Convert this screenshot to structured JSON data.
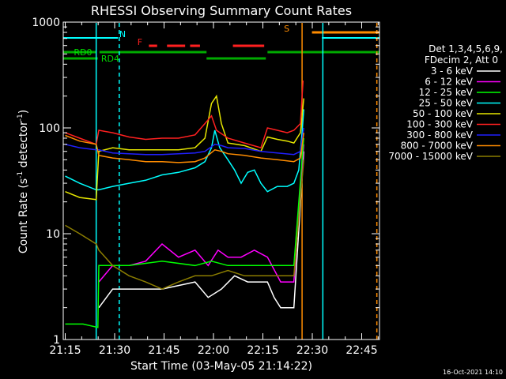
{
  "chart_data": {
    "type": "line",
    "title": "RHESSI Observing Summary Count Rates",
    "xlabel": "Start Time (03-May-05 21:14:22)",
    "ylabel_main": "Count Rate (s",
    "ylabel_sup1": "-1",
    "ylabel_mid": " detector",
    "ylabel_sup2": "-1",
    "ylabel_end": ")",
    "footer": "16-Oct-2021 14:10",
    "x_range_minutes": [
      0,
      96
    ],
    "y_log": true,
    "ylim": [
      1,
      1000
    ],
    "x_ticks": [
      {
        "label": "21:15",
        "t": 0.6
      },
      {
        "label": "21:30",
        "t": 15.6
      },
      {
        "label": "21:45",
        "t": 30.6
      },
      {
        "label": "22:00",
        "t": 45.6
      },
      {
        "label": "22:15",
        "t": 60.6
      },
      {
        "label": "22:30",
        "t": 75.6
      },
      {
        "label": "22:45",
        "t": 90.6
      }
    ],
    "y_ticks": [
      {
        "label": "1",
        "v": 1
      },
      {
        "label": "10",
        "v": 10
      },
      {
        "label": "100",
        "v": 100
      },
      {
        "label": "1000",
        "v": 1000
      }
    ],
    "legend": {
      "header1": "Det 1,3,4,5,6,9,",
      "header2": "FDecim 2, Att 0",
      "entries": [
        {
          "label": "3 - 6 keV",
          "color": "#ffffff"
        },
        {
          "label": "6 - 12 keV",
          "color": "#ff00ff"
        },
        {
          "label": "12 - 25 keV",
          "color": "#00ff00"
        },
        {
          "label": "25 - 50 keV",
          "color": "#00ffff"
        },
        {
          "label": "50 - 100 keV",
          "color": "#e6e600"
        },
        {
          "label": "100 - 300 keV",
          "color": "#ff2020"
        },
        {
          "label": "300 - 800 keV",
          "color": "#2020ff"
        },
        {
          "label": "800 - 7000 keV",
          "color": "#ff8c00"
        },
        {
          "label": "7000 - 15000 keV",
          "color": "#8b7d00"
        }
      ]
    },
    "flags": {
      "N_label": "N",
      "F_label": "F",
      "S_label": "S",
      "RD0_label": "RD0",
      "RD4_label": "RD4",
      "N_segments": [
        [
          0,
          16.6
        ],
        [
          78.5,
          96
        ]
      ],
      "F_segments": [
        [
          26,
          28.5
        ],
        [
          31.5,
          37
        ],
        [
          38.5,
          41.5
        ],
        [
          51.5,
          61
        ]
      ],
      "S_segments": [
        [
          75.5,
          96
        ]
      ],
      "RD0_segments": [
        [
          0,
          10
        ],
        [
          11,
          43.5
        ],
        [
          62,
          96
        ]
      ],
      "RD4_segments": [
        [
          0,
          10.5
        ],
        [
          43.5,
          61.5
        ]
      ]
    },
    "vlines": [
      {
        "t": 10,
        "color": "#00ffff",
        "dash": false
      },
      {
        "t": 17,
        "color": "#00ffff",
        "dash": true
      },
      {
        "t": 72.5,
        "color": "#ff8c00",
        "dash": false
      },
      {
        "t": 78.8,
        "color": "#00ffff",
        "dash": false
      },
      {
        "t": 95.2,
        "color": "#ff8c00",
        "dash": true
      }
    ],
    "series": [
      {
        "name": "3 - 6 keV",
        "color": "#ffffff",
        "points": [
          [
            10.8,
            2
          ],
          [
            15,
            3
          ],
          [
            20,
            3
          ],
          [
            30,
            3
          ],
          [
            40,
            3.5
          ],
          [
            44,
            2.5
          ],
          [
            48,
            3
          ],
          [
            52,
            4
          ],
          [
            56,
            3.5
          ],
          [
            62,
            3.5
          ],
          [
            64,
            2.5
          ],
          [
            66,
            2
          ],
          [
            70,
            2
          ],
          [
            73,
            60
          ]
        ]
      },
      {
        "name": "6 - 12 keV",
        "color": "#ff00ff",
        "points": [
          [
            10.8,
            3.5
          ],
          [
            15,
            5
          ],
          [
            20,
            5
          ],
          [
            25,
            5.5
          ],
          [
            30,
            8
          ],
          [
            35,
            6
          ],
          [
            40,
            7
          ],
          [
            44,
            5
          ],
          [
            47,
            7
          ],
          [
            50,
            6
          ],
          [
            54,
            6
          ],
          [
            58,
            7
          ],
          [
            62,
            6
          ],
          [
            66,
            3.5
          ],
          [
            70,
            3.5
          ],
          [
            73,
            70
          ]
        ]
      },
      {
        "name": "12 - 25 keV",
        "color": "#00ff00",
        "points": [
          [
            0.6,
            1.4
          ],
          [
            6,
            1.4
          ],
          [
            10.5,
            1.3
          ],
          [
            10.8,
            5
          ],
          [
            15,
            5
          ],
          [
            20,
            5
          ],
          [
            30,
            5.5
          ],
          [
            40,
            5
          ],
          [
            45,
            5.5
          ],
          [
            50,
            5
          ],
          [
            55,
            5
          ],
          [
            60,
            5
          ],
          [
            65,
            5
          ],
          [
            70,
            5
          ],
          [
            73,
            80
          ]
        ]
      },
      {
        "name": "25 - 50 keV",
        "color": "#00ffff",
        "points": [
          [
            0.6,
            35
          ],
          [
            5,
            30
          ],
          [
            10,
            26
          ],
          [
            10.8,
            26
          ],
          [
            15,
            28
          ],
          [
            20,
            30
          ],
          [
            25,
            32
          ],
          [
            30,
            36
          ],
          [
            35,
            38
          ],
          [
            40,
            42
          ],
          [
            43,
            48
          ],
          [
            45,
            65
          ],
          [
            46,
            95
          ],
          [
            47.5,
            65
          ],
          [
            50,
            50
          ],
          [
            52,
            40
          ],
          [
            54,
            30
          ],
          [
            56,
            38
          ],
          [
            58,
            40
          ],
          [
            60,
            30
          ],
          [
            62,
            25
          ],
          [
            65,
            28
          ],
          [
            68,
            28
          ],
          [
            70,
            30
          ],
          [
            71.5,
            40
          ],
          [
            72.5,
            90
          ],
          [
            73,
            150
          ]
        ]
      },
      {
        "name": "50 - 100 keV",
        "color": "#e6e600",
        "points": [
          [
            0.6,
            25
          ],
          [
            5,
            22
          ],
          [
            10,
            21
          ],
          [
            10.8,
            60
          ],
          [
            15,
            65
          ],
          [
            20,
            62
          ],
          [
            25,
            62
          ],
          [
            30,
            62
          ],
          [
            35,
            62
          ],
          [
            40,
            65
          ],
          [
            43,
            80
          ],
          [
            45,
            170
          ],
          [
            46.5,
            200
          ],
          [
            48,
            110
          ],
          [
            50,
            72
          ],
          [
            55,
            68
          ],
          [
            60,
            60
          ],
          [
            62,
            82
          ],
          [
            65,
            78
          ],
          [
            68,
            75
          ],
          [
            70,
            72
          ],
          [
            72,
            90
          ],
          [
            73,
            190
          ]
        ]
      },
      {
        "name": "100 - 300 keV",
        "color": "#ff2020",
        "points": [
          [
            0.6,
            90
          ],
          [
            5,
            80
          ],
          [
            10,
            70
          ],
          [
            10.8,
            95
          ],
          [
            15,
            90
          ],
          [
            20,
            82
          ],
          [
            25,
            78
          ],
          [
            30,
            80
          ],
          [
            35,
            80
          ],
          [
            40,
            86
          ],
          [
            43,
            110
          ],
          [
            45,
            130
          ],
          [
            46.5,
            95
          ],
          [
            50,
            80
          ],
          [
            55,
            72
          ],
          [
            60,
            65
          ],
          [
            62,
            100
          ],
          [
            65,
            95
          ],
          [
            68,
            90
          ],
          [
            70,
            95
          ],
          [
            72,
            110
          ],
          [
            72.8,
            280
          ]
        ]
      },
      {
        "name": "300 - 800 keV",
        "color": "#2020ff",
        "points": [
          [
            0.6,
            70
          ],
          [
            5,
            65
          ],
          [
            10,
            62
          ],
          [
            10.8,
            62
          ],
          [
            15,
            58
          ],
          [
            20,
            57
          ],
          [
            25,
            56
          ],
          [
            30,
            56
          ],
          [
            35,
            57
          ],
          [
            40,
            58
          ],
          [
            43,
            60
          ],
          [
            46,
            70
          ],
          [
            48,
            68
          ],
          [
            50,
            65
          ],
          [
            55,
            64
          ],
          [
            60,
            60
          ],
          [
            65,
            58
          ],
          [
            70,
            56
          ],
          [
            72,
            60
          ],
          [
            73,
            100
          ]
        ]
      },
      {
        "name": "800 - 7000 keV",
        "color": "#ff8c00",
        "points": [
          [
            0.6,
            85
          ],
          [
            5,
            75
          ],
          [
            10,
            70
          ],
          [
            10.8,
            55
          ],
          [
            15,
            52
          ],
          [
            20,
            50
          ],
          [
            25,
            48
          ],
          [
            30,
            48
          ],
          [
            35,
            47
          ],
          [
            40,
            48
          ],
          [
            43,
            52
          ],
          [
            46,
            62
          ],
          [
            48,
            60
          ],
          [
            50,
            57
          ],
          [
            55,
            55
          ],
          [
            60,
            52
          ],
          [
            65,
            50
          ],
          [
            70,
            48
          ],
          [
            72,
            52
          ],
          [
            73,
            90
          ]
        ]
      },
      {
        "name": "7000 - 15000 keV",
        "color": "#8b7d00",
        "points": [
          [
            0.6,
            12
          ],
          [
            5,
            10
          ],
          [
            10,
            8
          ],
          [
            10.8,
            7
          ],
          [
            15,
            5
          ],
          [
            20,
            4
          ],
          [
            25,
            3.5
          ],
          [
            30,
            3
          ],
          [
            35,
            3.5
          ],
          [
            40,
            4
          ],
          [
            45,
            4
          ],
          [
            50,
            4.5
          ],
          [
            55,
            4
          ],
          [
            60,
            4
          ],
          [
            65,
            4
          ],
          [
            70,
            4
          ],
          [
            73,
            50
          ]
        ]
      }
    ]
  }
}
